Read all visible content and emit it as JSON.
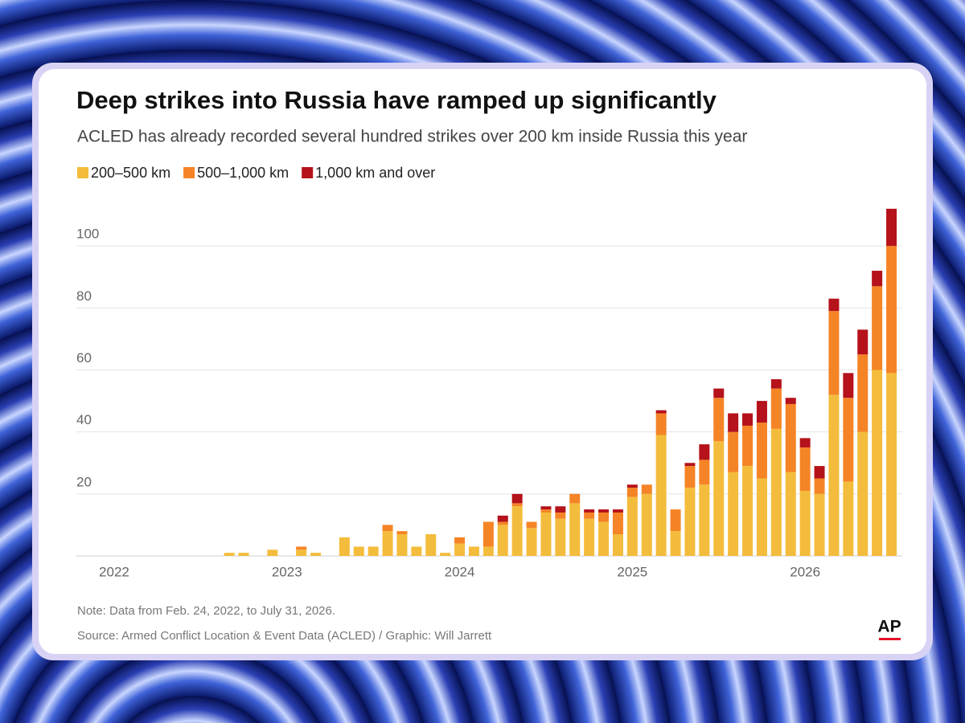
{
  "chart_data": {
    "type": "stacked-bar",
    "title": "Deep strikes into Russia have ramped up significantly",
    "subtitle": "ACLED has already recorded several hundred strikes over 200 km inside Russia this year",
    "note": "Note: Data from Feb. 24, 2022, to July 31, 2026.",
    "source": "Source: Armed Conflict Location & Event Data (ACLED) / Graphic: Will Jarrett",
    "logo": "AP",
    "categories": [
      "2022",
      null,
      null,
      null,
      null,
      null,
      null,
      null,
      null,
      null,
      null,
      null,
      "2023",
      null,
      null,
      null,
      null,
      null,
      null,
      null,
      null,
      null,
      null,
      null,
      "2024",
      null,
      null,
      null,
      null,
      null,
      null,
      null,
      null,
      null,
      null,
      null,
      "2025",
      null,
      null,
      null,
      null,
      null,
      null,
      null,
      null,
      null,
      null,
      null,
      "2026",
      null,
      null,
      null,
      null,
      null,
      null
    ],
    "series": [
      {
        "name": "200–500 km",
        "color": "#f4bc3c",
        "values": [
          null,
          0,
          0,
          0,
          0,
          0,
          0,
          0,
          1,
          1,
          0,
          2,
          0,
          2,
          1,
          0,
          6,
          3,
          3,
          8,
          7,
          3,
          7,
          1,
          4,
          3,
          3,
          10,
          16,
          9,
          14,
          12,
          17,
          12,
          11,
          7,
          19,
          20,
          39,
          8,
          22,
          23,
          37,
          27,
          29,
          25,
          41,
          27,
          21,
          20,
          52,
          24,
          40,
          60,
          59
        ]
      },
      {
        "name": "500–1,000 km",
        "color": "#f58426",
        "values": [
          null,
          0,
          0,
          0,
          0,
          0,
          0,
          0,
          0,
          0,
          0,
          0,
          0,
          1,
          0,
          0,
          0,
          0,
          0,
          2,
          1,
          0,
          0,
          0,
          2,
          0,
          8,
          1,
          1,
          2,
          1,
          2,
          3,
          2,
          3,
          7,
          3,
          3,
          7,
          7,
          7,
          8,
          14,
          13,
          13,
          18,
          13,
          22,
          14,
          5,
          27,
          27,
          25,
          27,
          41
        ]
      },
      {
        "name": "1,000 km and over",
        "color": "#b5121b",
        "values": [
          null,
          0,
          0,
          0,
          0,
          0,
          0,
          0,
          0,
          0,
          0,
          0,
          0,
          0,
          0,
          0,
          0,
          0,
          0,
          0,
          0,
          0,
          0,
          0,
          0,
          0,
          0,
          2,
          3,
          0,
          1,
          2,
          0,
          1,
          1,
          1,
          1,
          0,
          1,
          0,
          1,
          5,
          3,
          6,
          4,
          7,
          3,
          2,
          3,
          4,
          4,
          8,
          8,
          5,
          12
        ]
      }
    ],
    "ylim": [
      0,
      113
    ],
    "yticks": [
      20,
      40,
      60,
      80,
      100
    ],
    "grid": true,
    "legend": "top-left"
  }
}
